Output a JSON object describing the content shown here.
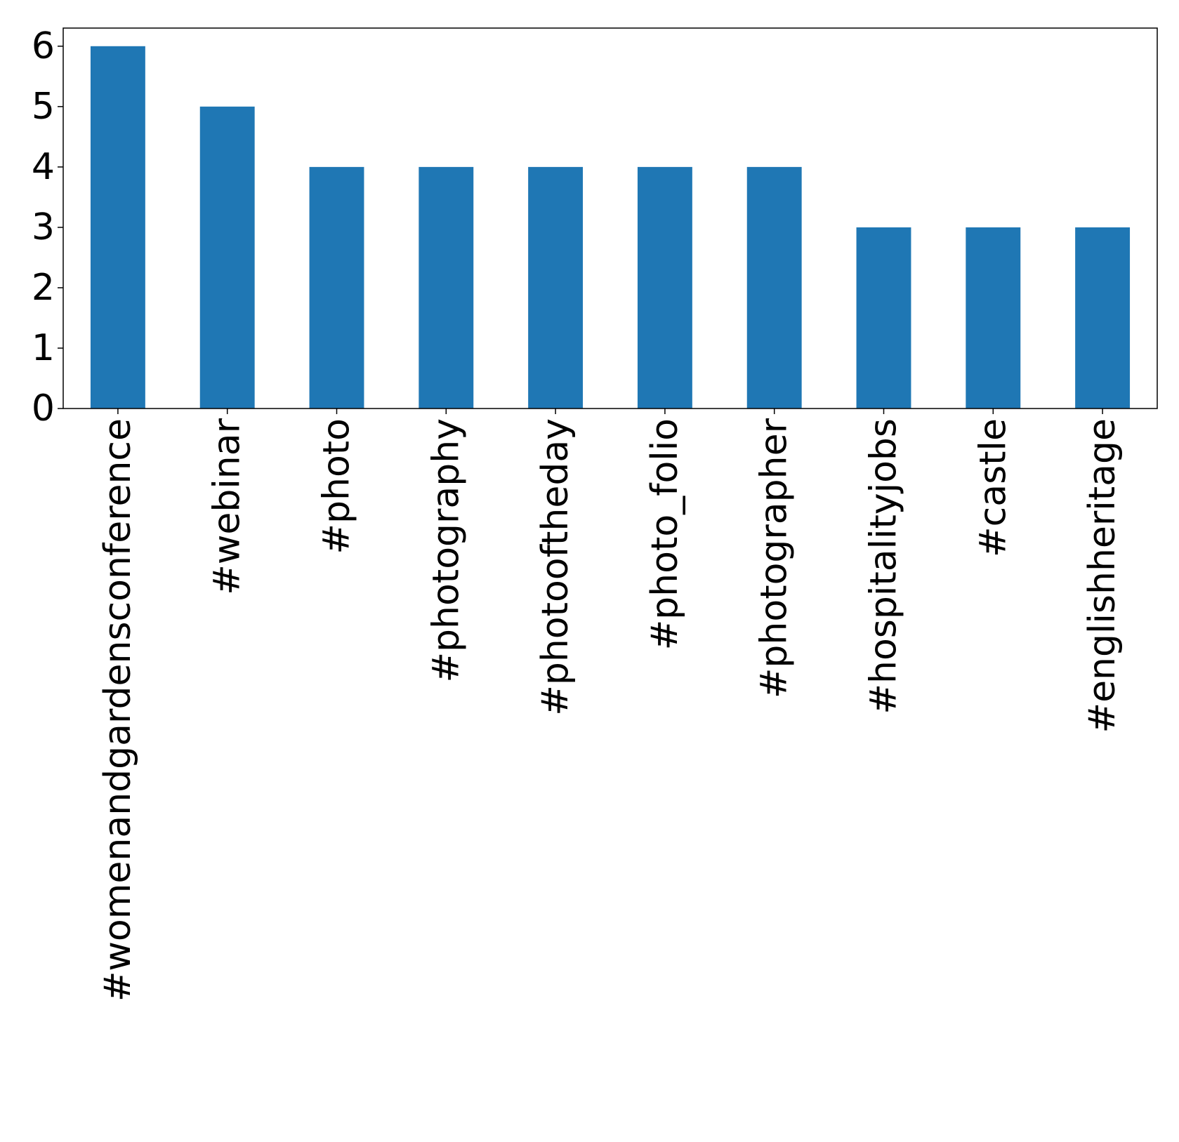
{
  "chart_data": {
    "type": "bar",
    "categories": [
      "#womenandgardensconference",
      "#webinar",
      "#photo",
      "#photography",
      "#photooftheday",
      "#photo_folio",
      "#photographer",
      "#hospitalityjobs",
      "#castle",
      "#englishheritage"
    ],
    "values": [
      6,
      5,
      4,
      4,
      4,
      4,
      4,
      3,
      3,
      3
    ],
    "title": "",
    "xlabel": "",
    "ylabel": "",
    "ylim": [
      0,
      6.3
    ],
    "yticks": [
      0,
      1,
      2,
      3,
      4,
      5,
      6
    ],
    "grid": false,
    "bar_color": "#1f77b4"
  }
}
